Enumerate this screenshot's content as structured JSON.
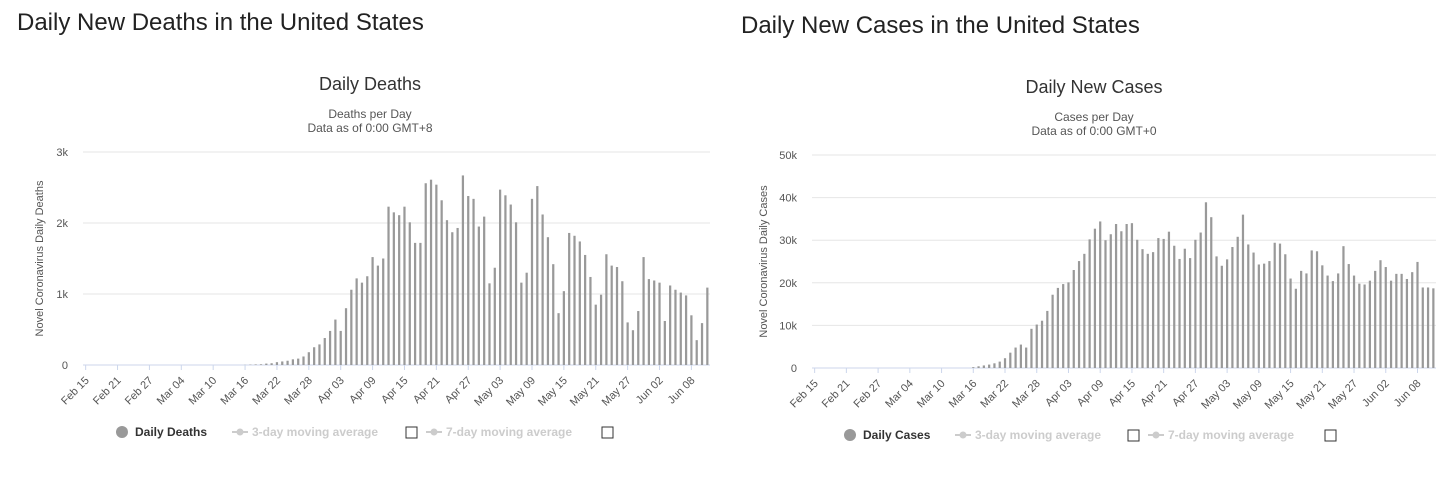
{
  "charts": [
    {
      "section_title": "Daily New Deaths in the United States",
      "title": "Daily Deaths",
      "subtitle1": "Deaths per Day",
      "subtitle2": "Data as of 0:00 GMT+8",
      "ylabel": "Novel Coronavirus Daily Deaths",
      "legend": [
        {
          "label": "Daily Deaths",
          "active": true,
          "icon": "dot-icon"
        },
        {
          "label": "3-day moving average",
          "active": false,
          "icon": "line-marker-icon"
        },
        {
          "label": "7-day moving average",
          "active": false,
          "icon": "line-marker-icon"
        }
      ]
    },
    {
      "section_title": "Daily New Cases in the United States",
      "title": "Daily New Cases",
      "subtitle1": "Cases per Day",
      "subtitle2": "Data as of 0:00 GMT+0",
      "ylabel": "Novel Coronavirus Daily Cases",
      "legend": [
        {
          "label": "Daily Cases",
          "active": true,
          "icon": "dot-icon"
        },
        {
          "label": "3-day moving average",
          "active": false,
          "icon": "line-marker-icon"
        },
        {
          "label": "7-day moving average",
          "active": false,
          "icon": "line-marker-icon"
        }
      ]
    }
  ],
  "chart_data": [
    {
      "type": "bar",
      "title": "Daily Deaths",
      "ylabel": "Novel Coronavirus Daily Deaths",
      "ylim": [
        0,
        3000
      ],
      "yticks": [
        0,
        1000,
        2000,
        3000
      ],
      "ytick_labels": [
        "0",
        "1k",
        "2k",
        "3k"
      ],
      "x_start": "2020-02-15",
      "xtick_labels": [
        "Feb 15",
        "Feb 21",
        "Feb 27",
        "Mar 04",
        "Mar 10",
        "Mar 16",
        "Mar 22",
        "Mar 28",
        "Apr 03",
        "Apr 09",
        "Apr 15",
        "Apr 21",
        "Apr 27",
        "May 03",
        "May 09",
        "May 15",
        "May 21",
        "May 27",
        "Jun 02",
        "Jun 08"
      ],
      "grid": true,
      "legend_position": "bottom",
      "series": [
        {
          "name": "Daily Deaths",
          "color": "#999999",
          "values": [
            0,
            0,
            0,
            0,
            0,
            0,
            0,
            0,
            0,
            0,
            0,
            0,
            0,
            0,
            0,
            0,
            0,
            0,
            0,
            0,
            0,
            0,
            0,
            0,
            0,
            0,
            0,
            0,
            0,
            0,
            2,
            5,
            8,
            10,
            20,
            25,
            40,
            50,
            60,
            80,
            90,
            120,
            180,
            250,
            290,
            380,
            480,
            640,
            480,
            800,
            1060,
            1220,
            1160,
            1250,
            1520,
            1400,
            1500,
            2230,
            2150,
            2110,
            2230,
            2010,
            1720,
            1720,
            2560,
            2610,
            2540,
            2320,
            2040,
            1870,
            1930,
            2670,
            2380,
            2340,
            1950,
            2090,
            1150,
            1370,
            2470,
            2390,
            2260,
            2010,
            1160,
            1300,
            2340,
            2520,
            2120,
            1800,
            1420,
            730,
            1040,
            1860,
            1820,
            1740,
            1550,
            1240,
            850,
            990,
            1560,
            1400,
            1380,
            1180,
            600,
            490,
            760,
            1520,
            1210,
            1190,
            1160,
            620,
            1120,
            1060,
            1020,
            980,
            700,
            350,
            590,
            1090
          ]
        }
      ]
    },
    {
      "type": "bar",
      "title": "Daily New Cases",
      "ylabel": "Novel Coronavirus Daily Cases",
      "ylim": [
        0,
        50000
      ],
      "yticks": [
        0,
        10000,
        20000,
        30000,
        40000,
        50000
      ],
      "ytick_labels": [
        "0",
        "10k",
        "20k",
        "30k",
        "40k",
        "50k"
      ],
      "x_start": "2020-02-15",
      "xtick_labels": [
        "Feb 15",
        "Feb 21",
        "Feb 27",
        "Mar 04",
        "Mar 10",
        "Mar 16",
        "Mar 22",
        "Mar 28",
        "Apr 03",
        "Apr 09",
        "Apr 15",
        "Apr 21",
        "Apr 27",
        "May 03",
        "May 09",
        "May 15",
        "May 21",
        "May 27",
        "Jun 02",
        "Jun 08"
      ],
      "grid": true,
      "legend_position": "bottom",
      "series": [
        {
          "name": "Daily Cases",
          "color": "#999999",
          "values": [
            0,
            0,
            0,
            0,
            0,
            0,
            0,
            0,
            0,
            0,
            0,
            0,
            0,
            0,
            0,
            0,
            0,
            0,
            0,
            0,
            0,
            0,
            0,
            0,
            0,
            0,
            0,
            0,
            0,
            0,
            200,
            400,
            600,
            800,
            1100,
            1500,
            2300,
            3600,
            4800,
            5500,
            4800,
            9200,
            10200,
            11100,
            13400,
            17200,
            18800,
            19700,
            20100,
            23000,
            25100,
            26800,
            30200,
            32700,
            34400,
            30000,
            31400,
            33800,
            32100,
            33800,
            34000,
            30100,
            27900,
            26800,
            27200,
            30500,
            30300,
            32000,
            28700,
            25600,
            28000,
            25800,
            30100,
            31800,
            38900,
            35400,
            26200,
            24000,
            25500,
            28400,
            30800,
            36000,
            29000,
            27100,
            24300,
            24500,
            25100,
            29400,
            29200,
            26700,
            21000,
            18600,
            22800,
            22200,
            27600,
            27400,
            24100,
            21700,
            20400,
            22200,
            28600,
            24400,
            21700,
            19800,
            19600,
            20500,
            22800,
            25300,
            23700,
            20500,
            22100,
            22100,
            20900,
            22500,
            24900,
            18900,
            18900,
            18700
          ]
        }
      ]
    }
  ]
}
